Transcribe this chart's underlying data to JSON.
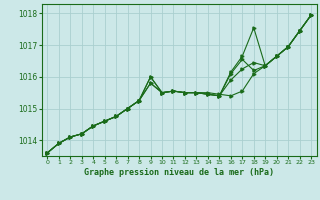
{
  "title": "Graphe pression niveau de la mer (hPa)",
  "background_color": "#cce8e8",
  "grid_color": "#aacfcf",
  "line_color": "#1a6b1a",
  "marker_color": "#1a6b1a",
  "xlim": [
    -0.5,
    23.5
  ],
  "ylim": [
    1013.5,
    1018.3
  ],
  "yticks": [
    1014,
    1015,
    1016,
    1017,
    1018
  ],
  "xtick_labels": [
    "0",
    "1",
    "2",
    "3",
    "4",
    "5",
    "6",
    "7",
    "8",
    "9",
    "10",
    "11",
    "12",
    "13",
    "14",
    "15",
    "16",
    "17",
    "18",
    "19",
    "20",
    "21",
    "22",
    "23"
  ],
  "lines": [
    [
      1013.6,
      1013.9,
      1014.1,
      1014.2,
      1014.45,
      1014.6,
      1014.75,
      1015.0,
      1015.25,
      1015.8,
      1015.5,
      1015.55,
      1015.5,
      1015.5,
      1015.5,
      1015.45,
      1015.4,
      1015.55,
      1016.1,
      1016.35,
      1016.65,
      1016.95,
      1017.45,
      1017.95
    ],
    [
      1013.6,
      1013.9,
      1014.1,
      1014.2,
      1014.45,
      1014.6,
      1014.75,
      1015.0,
      1015.25,
      1015.8,
      1015.5,
      1015.55,
      1015.5,
      1015.5,
      1015.45,
      1015.4,
      1015.9,
      1016.25,
      1016.45,
      1016.35,
      1016.65,
      1016.95,
      1017.45,
      1017.95
    ],
    [
      1013.6,
      1013.9,
      1014.1,
      1014.2,
      1014.45,
      1014.6,
      1014.75,
      1015.0,
      1015.25,
      1016.0,
      1015.5,
      1015.55,
      1015.5,
      1015.5,
      1015.45,
      1015.4,
      1016.1,
      1016.55,
      1016.2,
      1016.35,
      1016.65,
      1016.95,
      1017.45,
      1017.95
    ],
    [
      1013.6,
      1013.9,
      1014.1,
      1014.2,
      1014.45,
      1014.6,
      1014.75,
      1015.0,
      1015.25,
      1016.0,
      1015.5,
      1015.55,
      1015.5,
      1015.5,
      1015.45,
      1015.4,
      1016.15,
      1016.65,
      1017.55,
      1016.35,
      1016.65,
      1016.95,
      1017.45,
      1017.95
    ]
  ]
}
